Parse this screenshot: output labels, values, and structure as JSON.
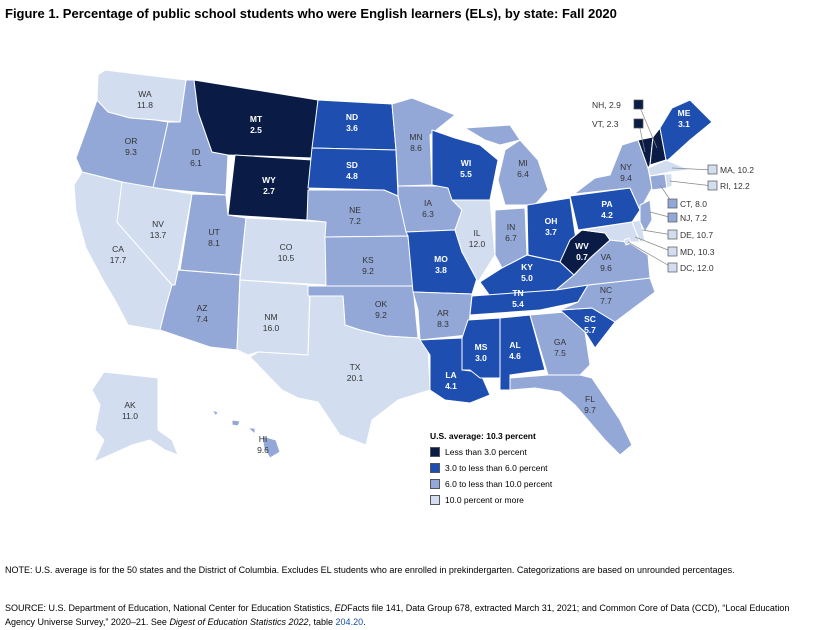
{
  "title": "Figure 1. Percentage of public school students who were English learners (ELs), by state: Fall 2020",
  "colors": {
    "c1": "#0a1c45",
    "c2": "#1e4fb0",
    "c3": "#94a8d8",
    "c4": "#d2ddf0"
  },
  "legend": {
    "title": "U.S. average: 10.3 percent",
    "items": [
      {
        "label": "Less than 3.0 percent",
        "cls": "c1"
      },
      {
        "label": "3.0 to less than 6.0 percent",
        "cls": "c2"
      },
      {
        "label": "6.0 to less than 10.0 percent",
        "cls": "c3"
      },
      {
        "label": "10.0 percent or more",
        "cls": "c4"
      }
    ]
  },
  "states": [
    {
      "abbr": "WA",
      "value": "11.8",
      "cls": "c4"
    },
    {
      "abbr": "OR",
      "value": "9.3",
      "cls": "c3"
    },
    {
      "abbr": "CA",
      "value": "17.7",
      "cls": "c4"
    },
    {
      "abbr": "ID",
      "value": "6.1",
      "cls": "c3"
    },
    {
      "abbr": "NV",
      "value": "13.7",
      "cls": "c4"
    },
    {
      "abbr": "MT",
      "value": "2.5",
      "cls": "c1"
    },
    {
      "abbr": "WY",
      "value": "2.7",
      "cls": "c1"
    },
    {
      "abbr": "UT",
      "value": "8.1",
      "cls": "c3"
    },
    {
      "abbr": "AZ",
      "value": "7.4",
      "cls": "c3"
    },
    {
      "abbr": "CO",
      "value": "10.5",
      "cls": "c4"
    },
    {
      "abbr": "NM",
      "value": "16.0",
      "cls": "c4"
    },
    {
      "abbr": "ND",
      "value": "3.6",
      "cls": "c2"
    },
    {
      "abbr": "SD",
      "value": "4.8",
      "cls": "c2"
    },
    {
      "abbr": "NE",
      "value": "7.2",
      "cls": "c3"
    },
    {
      "abbr": "KS",
      "value": "9.2",
      "cls": "c3"
    },
    {
      "abbr": "OK",
      "value": "9.2",
      "cls": "c3"
    },
    {
      "abbr": "TX",
      "value": "20.1",
      "cls": "c4"
    },
    {
      "abbr": "MN",
      "value": "8.6",
      "cls": "c3"
    },
    {
      "abbr": "IA",
      "value": "6.3",
      "cls": "c3"
    },
    {
      "abbr": "MO",
      "value": "3.8",
      "cls": "c2"
    },
    {
      "abbr": "AR",
      "value": "8.3",
      "cls": "c3"
    },
    {
      "abbr": "LA",
      "value": "4.1",
      "cls": "c2"
    },
    {
      "abbr": "WI",
      "value": "5.5",
      "cls": "c2"
    },
    {
      "abbr": "IL",
      "value": "12.0",
      "cls": "c4"
    },
    {
      "abbr": "MI",
      "value": "6.4",
      "cls": "c3"
    },
    {
      "abbr": "IN",
      "value": "6.7",
      "cls": "c3"
    },
    {
      "abbr": "OH",
      "value": "3.7",
      "cls": "c2"
    },
    {
      "abbr": "KY",
      "value": "5.0",
      "cls": "c2"
    },
    {
      "abbr": "TN",
      "value": "5.4",
      "cls": "c2"
    },
    {
      "abbr": "MS",
      "value": "3.0",
      "cls": "c2"
    },
    {
      "abbr": "AL",
      "value": "4.6",
      "cls": "c2"
    },
    {
      "abbr": "GA",
      "value": "7.5",
      "cls": "c3"
    },
    {
      "abbr": "FL",
      "value": "9.7",
      "cls": "c3"
    },
    {
      "abbr": "SC",
      "value": "5.7",
      "cls": "c2"
    },
    {
      "abbr": "NC",
      "value": "7.7",
      "cls": "c3"
    },
    {
      "abbr": "VA",
      "value": "9.6",
      "cls": "c3"
    },
    {
      "abbr": "WV",
      "value": "0.7",
      "cls": "c1"
    },
    {
      "abbr": "PA",
      "value": "4.2",
      "cls": "c2"
    },
    {
      "abbr": "NY",
      "value": "9.4",
      "cls": "c3"
    },
    {
      "abbr": "ME",
      "value": "3.1",
      "cls": "c2"
    },
    {
      "abbr": "AK",
      "value": "11.0",
      "cls": "c4"
    },
    {
      "abbr": "HI",
      "value": "9.6",
      "cls": "c3"
    }
  ],
  "callouts": [
    {
      "abbr": "NH",
      "text": "NH, 2.9",
      "cls": "c1"
    },
    {
      "abbr": "VT",
      "text": "VT, 2.3",
      "cls": "c1"
    },
    {
      "abbr": "MA",
      "text": "MA, 10.2",
      "cls": "c4"
    },
    {
      "abbr": "RI",
      "text": "RI, 12.2",
      "cls": "c4"
    },
    {
      "abbr": "CT",
      "text": "CT, 8.0",
      "cls": "c3"
    },
    {
      "abbr": "NJ",
      "text": "NJ, 7.2",
      "cls": "c3"
    },
    {
      "abbr": "DE",
      "text": "DE, 10.7",
      "cls": "c4"
    },
    {
      "abbr": "MD",
      "text": "MD, 10.3",
      "cls": "c4"
    },
    {
      "abbr": "DC",
      "text": "DC, 12.0",
      "cls": "c4"
    }
  ],
  "note": {
    "text": "NOTE: U.S. average is for the 50 states and the District of Columbia. Excludes EL students who are enrolled in prekindergarten. Categorizations are based on unrounded percentages."
  },
  "source": {
    "part1": "SOURCE: U.S. Department of Education, National Center for Education Statistics, ",
    "edfacts_a": "ED",
    "edfacts_b": "Facts",
    "part2": " file 141, Data Group 678, extracted March 31, 2021; and Common Core of Data (CCD), “Local Education Agency Universe Survey,” 2020–21. See ",
    "digest": "Digest of Education Statistics 2022",
    "part3": ", table ",
    "table_link": "204.20",
    "part4": "."
  }
}
